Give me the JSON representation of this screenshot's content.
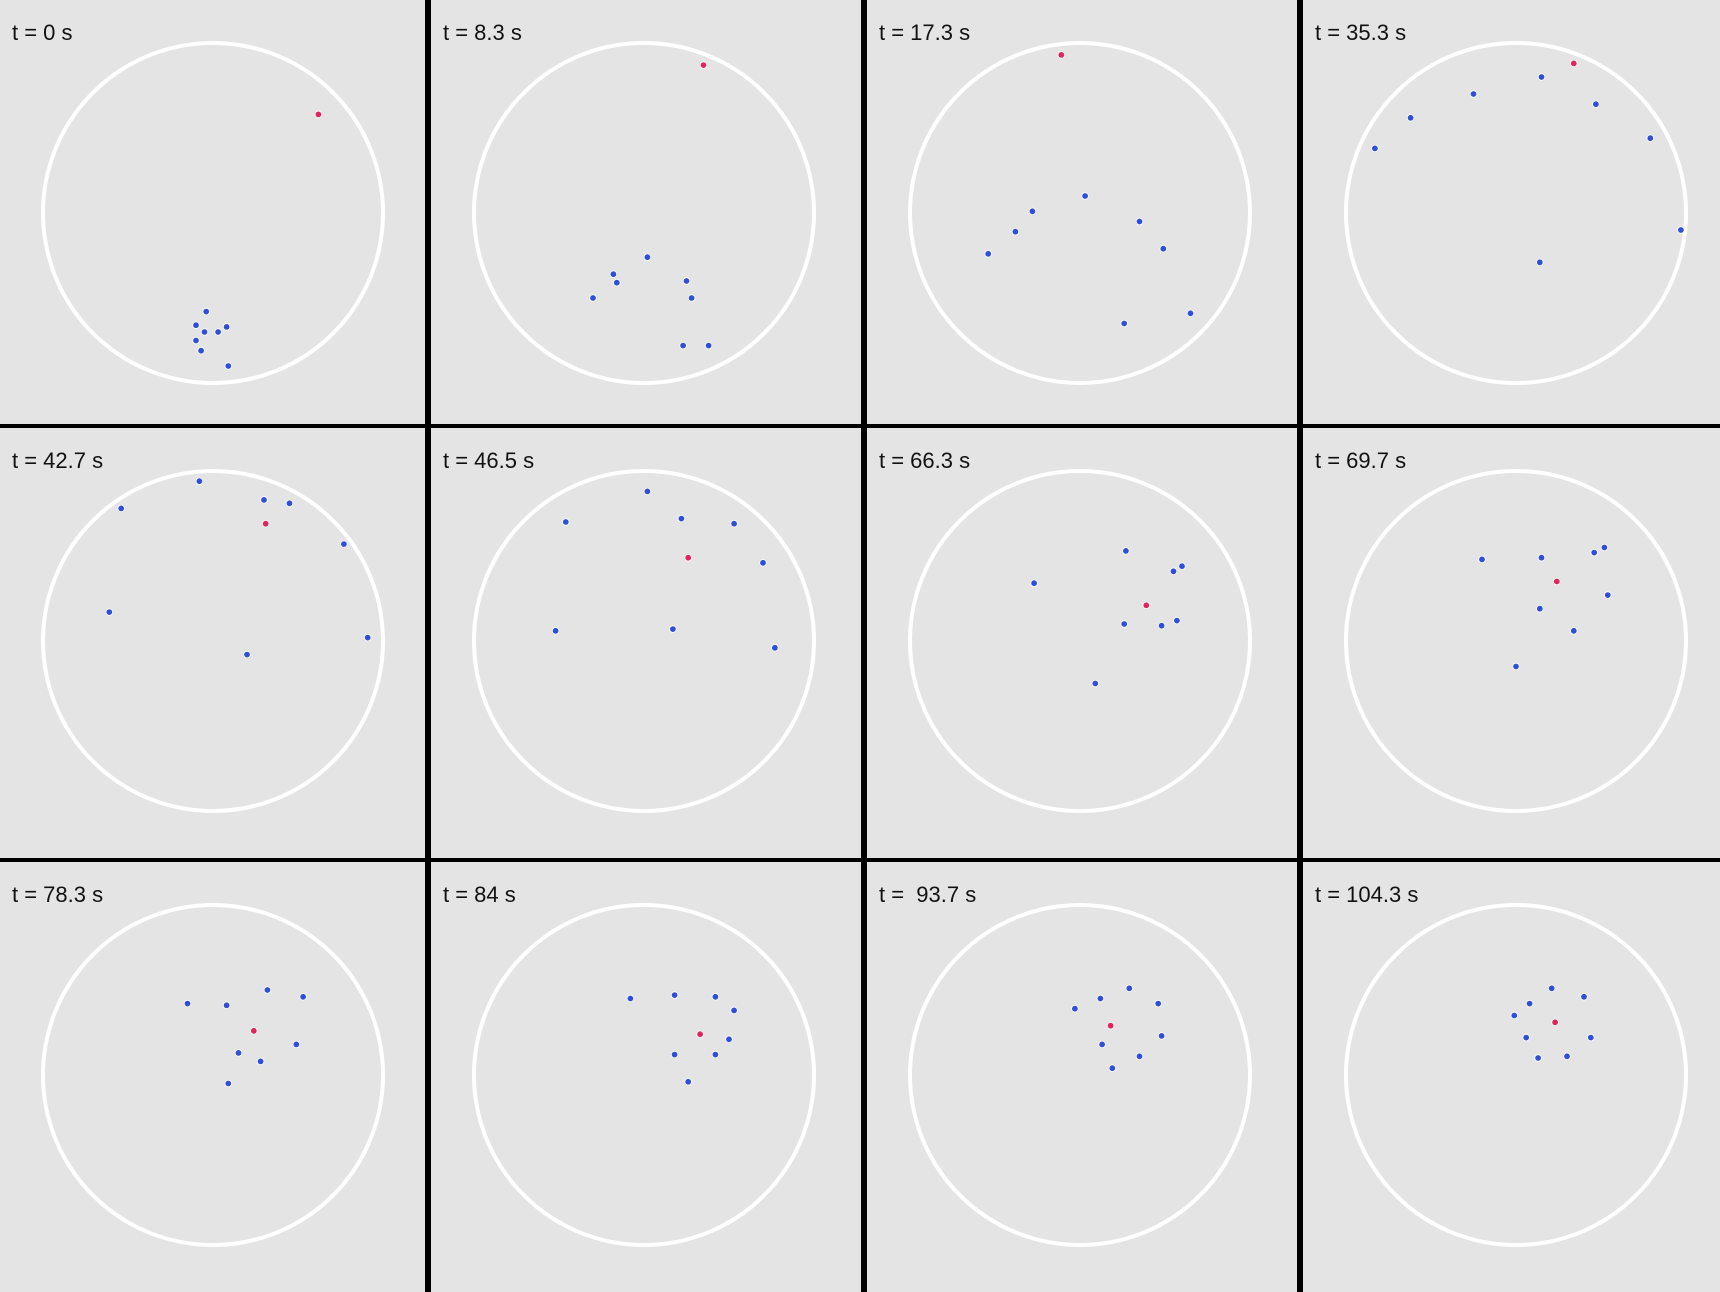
{
  "colors": {
    "background": "#e4e4e4",
    "divider": "#000000",
    "arena_boundary": "#ffffff",
    "follower_particle": "#2f4fd6",
    "leader_particle": "#e0245e"
  },
  "panels": [
    {
      "label": "t = 0 s",
      "leader": [
        0.62,
        0.58
      ],
      "followers": [
        [
          -0.04,
          -0.58
        ],
        [
          -0.1,
          -0.66
        ],
        [
          -0.05,
          -0.7
        ],
        [
          0.03,
          -0.7
        ],
        [
          0.08,
          -0.67
        ],
        [
          -0.1,
          -0.75
        ],
        [
          -0.07,
          -0.81
        ],
        [
          0.09,
          -0.9
        ]
      ]
    },
    {
      "label": "t = 8.3 s",
      "leader": [
        0.35,
        0.87
      ],
      "followers": [
        [
          0.02,
          -0.26
        ],
        [
          -0.18,
          -0.36
        ],
        [
          -0.16,
          -0.41
        ],
        [
          -0.3,
          -0.5
        ],
        [
          0.25,
          -0.4
        ],
        [
          0.28,
          -0.5
        ],
        [
          0.23,
          -0.78
        ],
        [
          0.38,
          -0.78
        ]
      ]
    },
    {
      "label": "t = 17.3 s",
      "leader": [
        -0.11,
        0.93
      ],
      "followers": [
        [
          0.03,
          0.1
        ],
        [
          -0.28,
          0.01
        ],
        [
          -0.38,
          -0.11
        ],
        [
          -0.54,
          -0.24
        ],
        [
          0.35,
          -0.05
        ],
        [
          0.49,
          -0.21
        ],
        [
          0.65,
          -0.59
        ],
        [
          0.26,
          -0.65
        ]
      ]
    },
    {
      "label": "t = 35.3 s",
      "leader": [
        0.34,
        0.88
      ],
      "followers": [
        [
          -0.25,
          0.7
        ],
        [
          0.15,
          0.8
        ],
        [
          0.47,
          0.64
        ],
        [
          -0.62,
          0.56
        ],
        [
          -0.83,
          0.38
        ],
        [
          0.79,
          0.44
        ],
        [
          0.97,
          -0.1
        ],
        [
          0.14,
          -0.29
        ]
      ]
    },
    {
      "label": "t = 42.7 s",
      "leader": [
        0.31,
        0.69
      ],
      "followers": [
        [
          -0.08,
          0.94
        ],
        [
          0.3,
          0.83
        ],
        [
          0.45,
          0.81
        ],
        [
          -0.54,
          0.78
        ],
        [
          0.77,
          0.57
        ],
        [
          -0.61,
          0.17
        ],
        [
          0.91,
          0.02
        ],
        [
          0.2,
          -0.08
        ]
      ]
    },
    {
      "label": "t = 46.5 s",
      "leader": [
        0.26,
        0.49
      ],
      "followers": [
        [
          0.02,
          0.88
        ],
        [
          0.22,
          0.72
        ],
        [
          0.53,
          0.69
        ],
        [
          -0.46,
          0.7
        ],
        [
          0.7,
          0.46
        ],
        [
          -0.52,
          0.06
        ],
        [
          0.17,
          0.07
        ],
        [
          0.77,
          -0.04
        ]
      ]
    },
    {
      "label": "t = 66.3 s",
      "leader": [
        0.39,
        0.21
      ],
      "followers": [
        [
          0.27,
          0.53
        ],
        [
          0.55,
          0.41
        ],
        [
          0.6,
          0.44
        ],
        [
          -0.27,
          0.34
        ],
        [
          0.26,
          0.1
        ],
        [
          0.48,
          0.09
        ],
        [
          0.57,
          0.12
        ],
        [
          0.09,
          -0.25
        ]
      ]
    },
    {
      "label": "t = 69.7 s",
      "leader": [
        0.24,
        0.35
      ],
      "followers": [
        [
          0.15,
          0.49
        ],
        [
          -0.2,
          0.48
        ],
        [
          0.46,
          0.52
        ],
        [
          0.52,
          0.55
        ],
        [
          0.54,
          0.27
        ],
        [
          0.14,
          0.19
        ],
        [
          0.34,
          0.06
        ],
        [
          0.0,
          -0.15
        ]
      ]
    },
    {
      "label": "t = 78.3 s",
      "leader": [
        0.24,
        0.26
      ],
      "followers": [
        [
          0.32,
          0.5
        ],
        [
          0.53,
          0.46
        ],
        [
          0.08,
          0.41
        ],
        [
          -0.15,
          0.42
        ],
        [
          0.15,
          0.13
        ],
        [
          0.28,
          0.08
        ],
        [
          0.49,
          0.18
        ],
        [
          0.09,
          -0.05
        ]
      ]
    },
    {
      "label": "t = 84 s",
      "leader": [
        0.33,
        0.24
      ],
      "followers": [
        [
          0.18,
          0.47
        ],
        [
          0.42,
          0.46
        ],
        [
          0.53,
          0.38
        ],
        [
          -0.08,
          0.45
        ],
        [
          0.18,
          0.12
        ],
        [
          0.42,
          0.12
        ],
        [
          0.5,
          0.21
        ],
        [
          0.26,
          -0.04
        ]
      ]
    },
    {
      "label": "t =  93.7 s",
      "leader": [
        0.18,
        0.29
      ],
      "followers": [
        [
          0.29,
          0.51
        ],
        [
          0.46,
          0.42
        ],
        [
          0.12,
          0.45
        ],
        [
          -0.03,
          0.39
        ],
        [
          0.13,
          0.18
        ],
        [
          0.35,
          0.11
        ],
        [
          0.48,
          0.23
        ],
        [
          0.19,
          0.04
        ]
      ]
    },
    {
      "label": "t = 104.3 s",
      "leader": [
        0.23,
        0.31
      ],
      "followers": [
        [
          0.21,
          0.51
        ],
        [
          0.4,
          0.46
        ],
        [
          0.08,
          0.42
        ],
        [
          -0.01,
          0.35
        ],
        [
          0.06,
          0.22
        ],
        [
          0.13,
          0.1
        ],
        [
          0.3,
          0.11
        ],
        [
          0.44,
          0.22
        ]
      ]
    }
  ]
}
